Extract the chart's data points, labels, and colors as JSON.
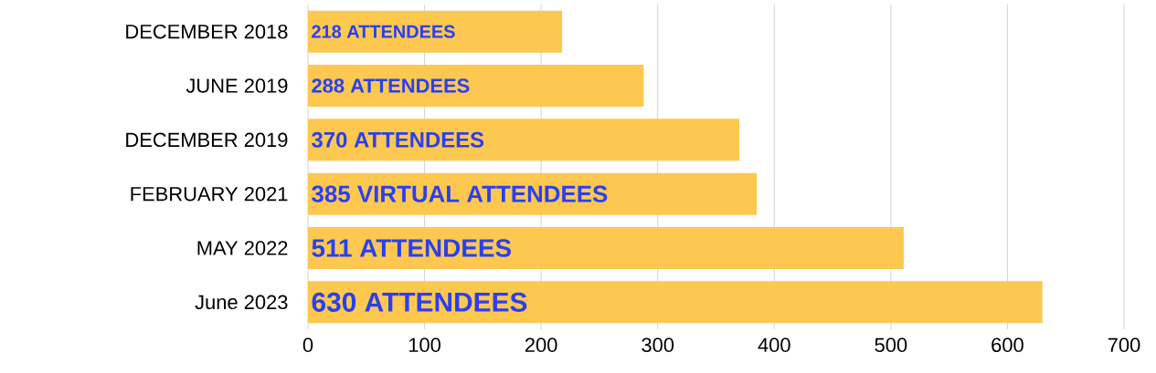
{
  "chart_data": {
    "type": "bar",
    "orientation": "horizontal",
    "categories": [
      "DECEMBER 2018",
      "JUNE 2019",
      "DECEMBER 2019",
      "FEBRUARY 2021",
      "MAY 2022",
      "June 2023"
    ],
    "values": [
      218,
      288,
      370,
      385,
      511,
      630
    ],
    "value_labels": [
      "218 ATTENDEES",
      "288 ATTENDEES",
      "370 ATTENDEES",
      "385 VIRTUAL ATTENDEES",
      "511 ATTENDEES",
      "630 ATTENDEES"
    ],
    "color": "#fcc850",
    "xlim": [
      0,
      700
    ],
    "xticks": [
      0,
      100,
      200,
      300,
      400,
      500,
      600,
      700
    ],
    "grid": "x"
  }
}
